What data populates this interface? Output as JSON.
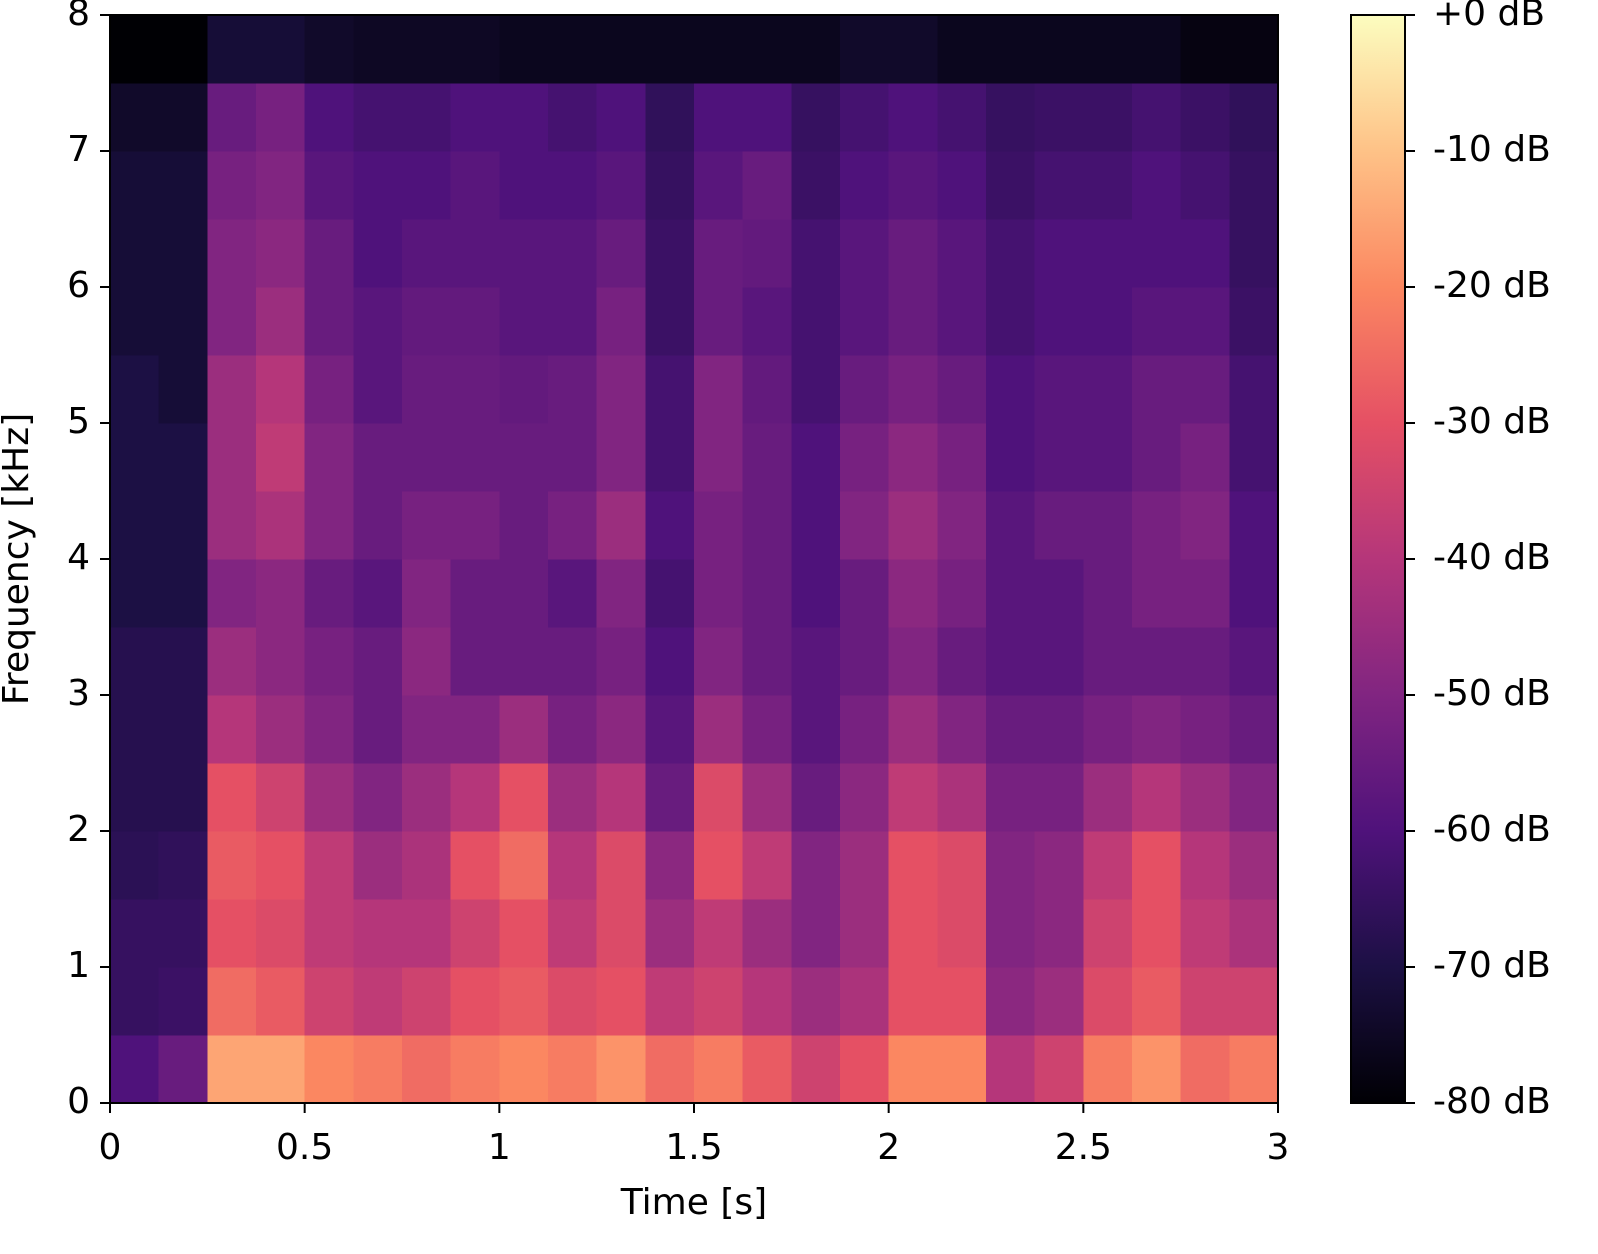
{
  "chart_data": {
    "type": "spectrogram",
    "xlabel": "Time [s]",
    "ylabel": "Frequency [kHz]",
    "xlim": [
      0,
      3
    ],
    "ylim": [
      0,
      8
    ],
    "xticks": [
      0,
      0.5,
      1,
      1.5,
      2,
      2.5,
      3
    ],
    "yticks": [
      0,
      1,
      2,
      3,
      4,
      5,
      6,
      7,
      8
    ],
    "colormap": "magma",
    "clim": [
      -80,
      0
    ],
    "cticks": [
      {
        "value": 0,
        "label": "+0 dB"
      },
      {
        "value": -10,
        "label": "-10 dB"
      },
      {
        "value": -20,
        "label": "-20 dB"
      },
      {
        "value": -30,
        "label": "-30 dB"
      },
      {
        "value": -40,
        "label": "-40 dB"
      },
      {
        "value": -50,
        "label": "-50 dB"
      },
      {
        "value": -60,
        "label": "-60 dB"
      },
      {
        "value": -70,
        "label": "-70 dB"
      },
      {
        "value": -80,
        "label": "-80 dB"
      }
    ],
    "xbins": [
      0,
      0.125,
      0.25,
      0.375,
      0.5,
      0.625,
      0.75,
      0.875,
      1,
      1.125,
      1.25,
      1.375,
      1.5,
      1.625,
      1.75,
      1.875,
      2,
      2.125,
      2.25,
      2.375,
      2.5,
      2.625,
      2.75,
      2.875,
      3
    ],
    "ybins": [
      0,
      0.5,
      1,
      1.5,
      2,
      2.5,
      3,
      3.5,
      4,
      4.5,
      5,
      5.5,
      6,
      6.5,
      7,
      7.5,
      8
    ],
    "values": [
      [
        -60,
        -65,
        -65,
        -67,
        -68,
        -68,
        -68,
        -70,
        -70,
        -70,
        -70,
        -72,
        -72,
        -72,
        -74,
        -80
      ],
      [
        -55,
        -64,
        -65,
        -66,
        -68,
        -68,
        -68,
        -70,
        -70,
        -70,
        -72,
        -72,
        -72,
        -72,
        -74,
        -80
      ],
      [
        -15,
        -25,
        -30,
        -28,
        -30,
        -40,
        -45,
        -50,
        -45,
        -45,
        -45,
        -50,
        -50,
        -52,
        -55,
        -72
      ],
      [
        -15,
        -28,
        -32,
        -30,
        -35,
        -45,
        -48,
        -48,
        -42,
        -38,
        -40,
        -45,
        -48,
        -50,
        -52,
        -72
      ],
      [
        -20,
        -35,
        -38,
        -38,
        -45,
        -50,
        -52,
        -55,
        -50,
        -50,
        -52,
        -55,
        -55,
        -58,
        -60,
        -74
      ],
      [
        -22,
        -38,
        -40,
        -45,
        -50,
        -55,
        -55,
        -58,
        -55,
        -55,
        -58,
        -58,
        -60,
        -60,
        -62,
        -75
      ],
      [
        -25,
        -35,
        -40,
        -42,
        -45,
        -50,
        -48,
        -50,
        -52,
        -55,
        -55,
        -56,
        -58,
        -60,
        -62,
        -75
      ],
      [
        -22,
        -30,
        -35,
        -30,
        -40,
        -50,
        -55,
        -55,
        -52,
        -55,
        -55,
        -56,
        -58,
        -58,
        -60,
        -75
      ],
      [
        -20,
        -28,
        -30,
        -25,
        -30,
        -45,
        -55,
        -55,
        -55,
        -55,
        -56,
        -58,
        -58,
        -60,
        -60,
        -76
      ],
      [
        -22,
        -32,
        -38,
        -40,
        -45,
        -52,
        -55,
        -58,
        -52,
        -55,
        -55,
        -58,
        -58,
        -60,
        -62,
        -76
      ],
      [
        -18,
        -30,
        -32,
        -32,
        -40,
        -48,
        -52,
        -50,
        -45,
        -50,
        -50,
        -52,
        -55,
        -58,
        -60,
        -76
      ],
      [
        -25,
        -38,
        -45,
        -48,
        -55,
        -58,
        -60,
        -62,
        -60,
        -62,
        -62,
        -64,
        -64,
        -65,
        -66,
        -76
      ],
      [
        -22,
        -35,
        -38,
        -30,
        -32,
        -45,
        -50,
        -52,
        -52,
        -50,
        -50,
        -55,
        -55,
        -58,
        -60,
        -76
      ],
      [
        -28,
        -40,
        -45,
        -38,
        -45,
        -52,
        -55,
        -55,
        -55,
        -55,
        -56,
        -58,
        -56,
        -55,
        -60,
        -76
      ],
      [
        -35,
        -45,
        -50,
        -50,
        -55,
        -58,
        -58,
        -60,
        -60,
        -60,
        -62,
        -62,
        -62,
        -64,
        -65,
        -76
      ],
      [
        -30,
        -42,
        -45,
        -45,
        -48,
        -52,
        -55,
        -55,
        -50,
        -52,
        -55,
        -58,
        -58,
        -60,
        -62,
        -74
      ],
      [
        -20,
        -30,
        -30,
        -30,
        -38,
        -45,
        -50,
        -48,
        -45,
        -48,
        -52,
        -55,
        -55,
        -58,
        -60,
        -74
      ],
      [
        -20,
        -30,
        -32,
        -32,
        -42,
        -50,
        -55,
        -52,
        -50,
        -52,
        -55,
        -58,
        -58,
        -60,
        -62,
        -76
      ],
      [
        -40,
        -48,
        -50,
        -50,
        -52,
        -55,
        -58,
        -58,
        -58,
        -60,
        -60,
        -62,
        -62,
        -64,
        -65,
        -76
      ],
      [
        -35,
        -45,
        -48,
        -48,
        -52,
        -55,
        -58,
        -58,
        -55,
        -58,
        -58,
        -60,
        -60,
        -62,
        -64,
        -76
      ],
      [
        -22,
        -32,
        -35,
        -38,
        -45,
        -52,
        -55,
        -55,
        -55,
        -58,
        -58,
        -60,
        -60,
        -62,
        -64,
        -76
      ],
      [
        -18,
        -28,
        -30,
        -30,
        -40,
        -50,
        -55,
        -52,
        -52,
        -55,
        -55,
        -58,
        -60,
        -60,
        -62,
        -76
      ],
      [
        -25,
        -35,
        -38,
        -40,
        -45,
        -52,
        -55,
        -52,
        -50,
        -52,
        -55,
        -58,
        -60,
        -62,
        -64,
        -78
      ],
      [
        -22,
        -35,
        -42,
        -45,
        -50,
        -55,
        -58,
        -60,
        -60,
        -62,
        -62,
        -64,
        -65,
        -65,
        -66,
        -78
      ]
    ]
  }
}
